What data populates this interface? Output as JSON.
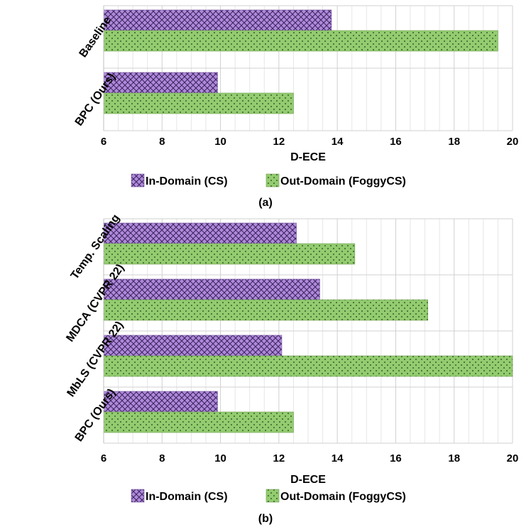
{
  "chart_data": [
    {
      "type": "bar",
      "orientation": "horizontal",
      "panel_caption": "(a)",
      "categories": [
        "Baseline",
        "BPC (Ours)"
      ],
      "series": [
        {
          "name": "In-Domain (CS)",
          "values": [
            13.8,
            9.9
          ],
          "color": "#a77ad6",
          "pattern": "crosshatch"
        },
        {
          "name": "Out-Domain (FoggyCS)",
          "values": [
            19.5,
            12.5
          ],
          "color": "#92cc6e",
          "pattern": "dots"
        }
      ],
      "xlabel": "D-ECE",
      "ylabel": "",
      "xlim": [
        6,
        20
      ],
      "xticks": [
        6,
        8,
        10,
        12,
        14,
        16,
        18,
        20
      ],
      "grid": true,
      "legend": "bottom"
    },
    {
      "type": "bar",
      "orientation": "horizontal",
      "panel_caption": "(b)",
      "categories": [
        "Temp. Scaling",
        "MDCA (CVPR 22)",
        "MbLS (CVPR 22)",
        "BPC (Ours)"
      ],
      "series": [
        {
          "name": "In-Domain (CS)",
          "values": [
            12.6,
            13.4,
            12.1,
            9.9
          ],
          "color": "#a77ad6",
          "pattern": "crosshatch"
        },
        {
          "name": "Out-Domain (FoggyCS)",
          "values": [
            14.6,
            17.1,
            20.0,
            12.5
          ],
          "color": "#92cc6e",
          "pattern": "dots"
        }
      ],
      "xlabel": "D-ECE",
      "ylabel": "",
      "xlim": [
        6,
        20
      ],
      "xticks": [
        6,
        8,
        10,
        12,
        14,
        16,
        18,
        20
      ],
      "grid": true,
      "legend": "bottom"
    }
  ]
}
